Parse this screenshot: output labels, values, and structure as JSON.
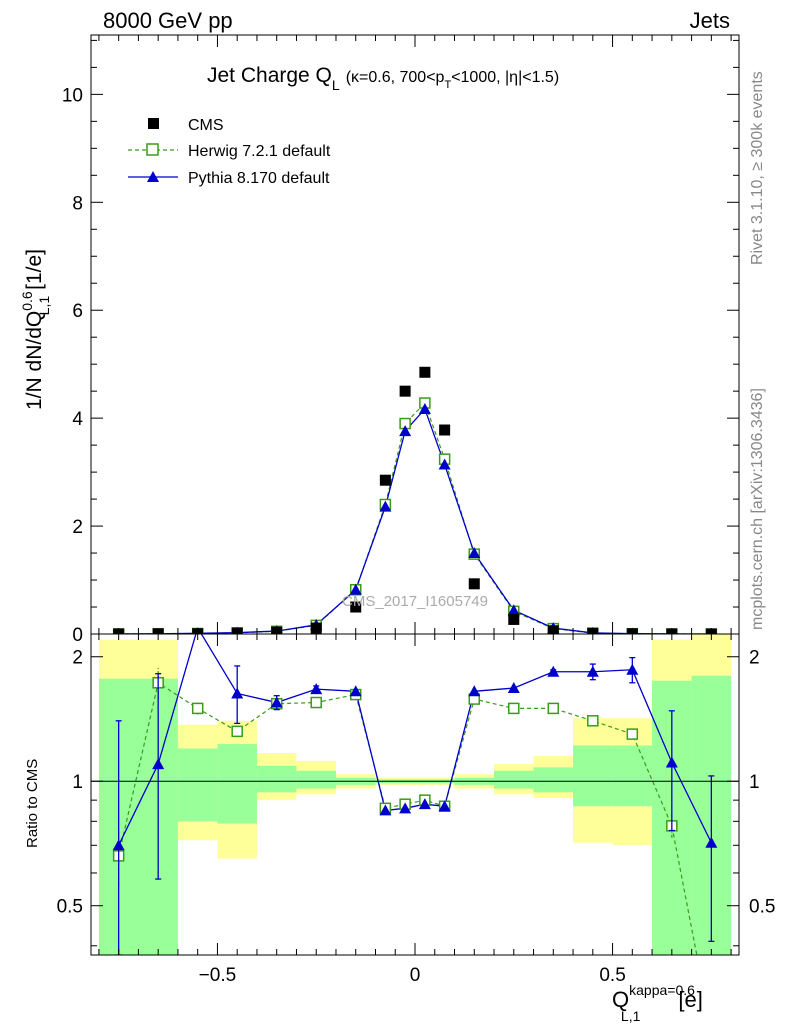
{
  "header": {
    "left": "8000 GeV pp",
    "right": "Jets"
  },
  "side_labels": {
    "rivet": "Rivet 3.1.10, ≥ 300k events",
    "mcplots": "mcplots.cern.ch [arXiv:1306.3436]"
  },
  "plot_title": {
    "main": "Jet Charge Q",
    "main_sub": "L",
    "cuts_a": "(κ=0.6, 700<p",
    "cuts_sub": "T",
    "cuts_b": "<1000, |η|<1.5)"
  },
  "watermark": "CMS_2017_I1605749",
  "y_axis_label": "1/N dN/dQ",
  "y_axis_label_sup": "0.6",
  "y_axis_label_sub": "L,1",
  "y_axis_label_unit": "[1/e]",
  "ratio_axis_label": "Ratio to CMS",
  "x_axis_label": "Q",
  "x_axis_label_sup": "kappa=0.6",
  "x_axis_label_sub": "L,1",
  "x_axis_label_unit": "[e]",
  "colors": {
    "cms": "#000000",
    "herwig": "#3a9a1a",
    "pythia": "#0000cc",
    "band_inner": "#99ff99",
    "band_outer": "#ffff99"
  },
  "chart_data": {
    "type": "line",
    "main": {
      "xlim": [
        -0.82,
        0.82
      ],
      "ylim": [
        0,
        11.1
      ],
      "yticks": [
        0,
        2,
        4,
        6,
        8,
        10
      ],
      "xticks": [
        -0.5,
        0,
        0.5
      ]
    },
    "ratio": {
      "ylim": [
        0.38,
        2.27
      ],
      "yticks": [
        0.5,
        1,
        2
      ],
      "ytick_labels": [
        "0.5",
        "1",
        "2"
      ]
    },
    "x": [
      -0.75,
      -0.65,
      -0.55,
      -0.45,
      -0.35,
      -0.25,
      -0.15,
      -0.075,
      -0.025,
      0.025,
      0.075,
      0.15,
      0.25,
      0.35,
      0.45,
      0.55,
      0.65,
      0.75
    ],
    "series": [
      {
        "name": "CMS",
        "marker": "square-filled",
        "values": [
          0.001,
          0.003,
          0.006,
          0.016,
          0.035,
          0.11,
          0.5,
          2.85,
          4.5,
          4.85,
          3.78,
          0.93,
          0.27,
          0.06,
          0.012,
          0.004,
          0.001,
          0.0005
        ]
      },
      {
        "name": "Herwig 7.2.1 default",
        "marker": "square-open",
        "style": "dashed",
        "values": [
          0.001,
          0.005,
          0.009,
          0.021,
          0.05,
          0.16,
          0.82,
          2.4,
          3.9,
          4.28,
          3.24,
          1.48,
          0.42,
          0.1,
          0.016,
          0.005,
          0.001,
          0.0
        ]
      },
      {
        "name": "Pythia 8.170 default",
        "marker": "triangle-filled",
        "style": "solid",
        "values": [
          0.001,
          0.004,
          0.013,
          0.026,
          0.054,
          0.17,
          0.82,
          2.36,
          3.76,
          4.17,
          3.14,
          1.5,
          0.44,
          0.11,
          0.02,
          0.007,
          0.001,
          0.0
        ]
      }
    ],
    "ratios": {
      "herwig": [
        0.66,
        1.73,
        1.5,
        1.32,
        1.54,
        1.55,
        1.62,
        0.86,
        0.88,
        0.9,
        0.87,
        1.58,
        1.5,
        1.5,
        1.4,
        1.3,
        0.78,
        0.25
      ],
      "herwig_err": [
        0.1,
        0.15,
        0.05,
        0.03,
        0.02,
        0.0,
        0.0,
        0.0,
        0.0,
        0.0,
        0.0,
        0.0,
        0.0,
        0.0,
        0.0,
        0.02,
        0.05,
        0.0
      ],
      "pythia": [
        0.7,
        1.1,
        2.35,
        1.63,
        1.55,
        1.67,
        1.65,
        0.85,
        0.86,
        0.88,
        0.87,
        1.65,
        1.68,
        1.84,
        1.84,
        1.86,
        1.11,
        0.71
      ],
      "pythia_err_lo": [
        0.34,
        0.52,
        0.05,
        0.25,
        0.06,
        0.03,
        0.0,
        0.0,
        0.0,
        0.0,
        0.0,
        0.0,
        0.0,
        0.02,
        0.08,
        0.13,
        0.35,
        0.3
      ],
      "pythia_err_hi": [
        0.7,
        0.72,
        0.05,
        0.27,
        0.06,
        0.03,
        0.0,
        0.0,
        0.0,
        0.0,
        0.0,
        0.0,
        0.0,
        0.02,
        0.08,
        0.13,
        0.37,
        0.32
      ]
    },
    "bands": [
      {
        "x0": -0.8,
        "x1": -0.6,
        "inner": [
          0.38,
          1.77
        ],
        "outer": [
          0.38,
          2.2
        ]
      },
      {
        "x0": -0.6,
        "x1": -0.5,
        "inner": [
          0.8,
          1.2
        ],
        "outer": [
          0.72,
          1.37
        ]
      },
      {
        "x0": -0.5,
        "x1": -0.4,
        "inner": [
          0.79,
          1.23
        ],
        "outer": [
          0.65,
          1.4
        ]
      },
      {
        "x0": -0.4,
        "x1": -0.3,
        "inner": [
          0.94,
          1.09
        ],
        "outer": [
          0.9,
          1.17
        ]
      },
      {
        "x0": -0.3,
        "x1": -0.2,
        "inner": [
          0.96,
          1.06
        ],
        "outer": [
          0.93,
          1.12
        ]
      },
      {
        "x0": -0.2,
        "x1": -0.1,
        "inner": [
          0.98,
          1.02
        ],
        "outer": [
          0.96,
          1.04
        ]
      },
      {
        "x0": -0.1,
        "x1": 0.1,
        "inner": [
          0.99,
          1.01
        ],
        "outer": [
          0.98,
          1.02
        ]
      },
      {
        "x0": 0.1,
        "x1": 0.2,
        "inner": [
          0.98,
          1.02
        ],
        "outer": [
          0.96,
          1.04
        ]
      },
      {
        "x0": 0.2,
        "x1": 0.3,
        "inner": [
          0.96,
          1.06
        ],
        "outer": [
          0.93,
          1.1
        ]
      },
      {
        "x0": 0.3,
        "x1": 0.4,
        "inner": [
          0.94,
          1.08
        ],
        "outer": [
          0.91,
          1.15
        ]
      },
      {
        "x0": 0.4,
        "x1": 0.5,
        "inner": [
          0.87,
          1.22
        ],
        "outer": [
          0.71,
          1.42
        ]
      },
      {
        "x0": 0.5,
        "x1": 0.6,
        "inner": [
          0.87,
          1.22
        ],
        "outer": [
          0.7,
          1.42
        ]
      },
      {
        "x0": 0.6,
        "x1": 0.7,
        "inner": [
          0.38,
          1.75
        ],
        "outer": [
          0.38,
          2.2
        ]
      },
      {
        "x0": 0.7,
        "x1": 0.8,
        "inner": [
          0.38,
          1.8
        ],
        "outer": [
          0.38,
          2.27
        ]
      }
    ]
  }
}
